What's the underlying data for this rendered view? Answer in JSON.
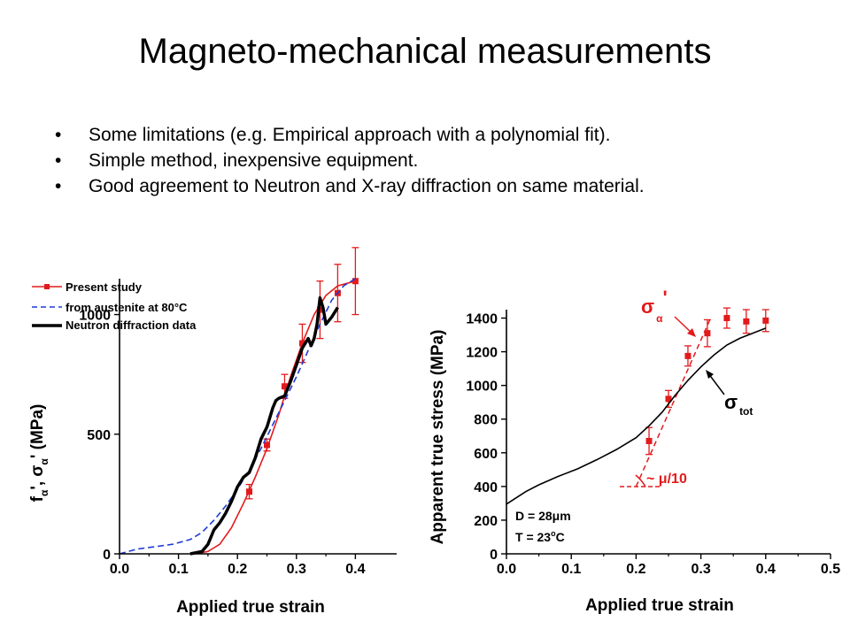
{
  "slide": {
    "title": "Magneto-mechanical measurements",
    "bullets": [
      "Some limitations (e.g. Empirical approach with a polynomial fit).",
      "Simple method, inexpensive equipment.",
      "Good agreement to Neutron and X-ray diffraction on same material."
    ]
  },
  "colors": {
    "red": "#e31a1c",
    "blue": "#1f3bd6",
    "black": "#000000"
  },
  "chart_data": [
    {
      "type": "line",
      "xlabel": "Applied true strain",
      "ylabel_parts": [
        "f",
        "α",
        "', σ",
        "α",
        "' (MPa)"
      ],
      "xlim": [
        0,
        0.47
      ],
      "ylim": [
        0,
        1150
      ],
      "xticks": [
        "0.0",
        "0.1",
        "0.2",
        "0.3",
        "0.4"
      ],
      "yticks": [
        "0",
        "500",
        "1000"
      ],
      "legend": {
        "placement": "top-left",
        "entries": [
          {
            "label": "Present study",
            "style": "red line with square markers"
          },
          {
            "label": "from austenite at 80°C",
            "style": "blue dashed"
          },
          {
            "label": "Neutron diffraction data",
            "style": "black thick"
          }
        ]
      },
      "series": [
        {
          "name": "Present study",
          "kind": "markers",
          "points": [
            {
              "x": 0.22,
              "y": 260,
              "err": 30
            },
            {
              "x": 0.25,
              "y": 455,
              "err": 25
            },
            {
              "x": 0.28,
              "y": 700,
              "err": 50
            },
            {
              "x": 0.31,
              "y": 880,
              "err": 80
            },
            {
              "x": 0.34,
              "y": 1020,
              "err": 120
            },
            {
              "x": 0.37,
              "y": 1090,
              "err": 120
            },
            {
              "x": 0.4,
              "y": 1140,
              "err": 140
            }
          ],
          "curve": [
            [
              0.13,
              0
            ],
            [
              0.15,
              10
            ],
            [
              0.17,
              40
            ],
            [
              0.19,
              110
            ],
            [
              0.21,
              210
            ],
            [
              0.23,
              320
            ],
            [
              0.25,
              440
            ],
            [
              0.27,
              580
            ],
            [
              0.29,
              740
            ],
            [
              0.31,
              880
            ],
            [
              0.33,
              1000
            ],
            [
              0.35,
              1080
            ],
            [
              0.37,
              1120
            ],
            [
              0.4,
              1140
            ]
          ]
        },
        {
          "name": "from austenite at 80°C",
          "kind": "dashed",
          "curve": [
            [
              0.0,
              0
            ],
            [
              0.03,
              20
            ],
            [
              0.06,
              30
            ],
            [
              0.09,
              40
            ],
            [
              0.12,
              60
            ],
            [
              0.14,
              90
            ],
            [
              0.16,
              140
            ],
            [
              0.18,
              200
            ],
            [
              0.2,
              270
            ],
            [
              0.22,
              350
            ],
            [
              0.24,
              440
            ],
            [
              0.26,
              540
            ],
            [
              0.28,
              640
            ],
            [
              0.3,
              740
            ],
            [
              0.32,
              850
            ],
            [
              0.34,
              960
            ],
            [
              0.36,
              1060
            ],
            [
              0.38,
              1120
            ],
            [
              0.4,
              1150
            ]
          ]
        },
        {
          "name": "Neutron diffraction data",
          "kind": "thick",
          "curve": [
            [
              0.12,
              0
            ],
            [
              0.14,
              10
            ],
            [
              0.15,
              40
            ],
            [
              0.16,
              100
            ],
            [
              0.17,
              130
            ],
            [
              0.18,
              170
            ],
            [
              0.19,
              220
            ],
            [
              0.2,
              280
            ],
            [
              0.21,
              320
            ],
            [
              0.22,
              340
            ],
            [
              0.23,
              400
            ],
            [
              0.24,
              480
            ],
            [
              0.25,
              530
            ],
            [
              0.26,
              610
            ],
            [
              0.265,
              640
            ],
            [
              0.27,
              650
            ],
            [
              0.28,
              660
            ],
            [
              0.29,
              720
            ],
            [
              0.3,
              790
            ],
            [
              0.31,
              860
            ],
            [
              0.32,
              900
            ],
            [
              0.325,
              870
            ],
            [
              0.33,
              900
            ],
            [
              0.335,
              960
            ],
            [
              0.34,
              1070
            ],
            [
              0.345,
              1030
            ],
            [
              0.35,
              960
            ],
            [
              0.36,
              990
            ],
            [
              0.37,
              1030
            ]
          ]
        }
      ]
    },
    {
      "type": "line",
      "xlabel": "Applied true strain",
      "ylabel": "Apparent true stress (MPa)",
      "xlim": [
        0,
        0.5
      ],
      "ylim": [
        0,
        1450
      ],
      "xticks": [
        "0.0",
        "0.1",
        "0.2",
        "0.3",
        "0.4",
        "0.5"
      ],
      "yticks": [
        "0",
        "200",
        "400",
        "600",
        "800",
        "1000",
        "1200",
        "1400"
      ],
      "annotations": {
        "sigma_alpha": [
          "σ",
          "α",
          "'"
        ],
        "sigma_tot": [
          "σ",
          "tot"
        ],
        "slope": [
          "~ ",
          "μ",
          "/10"
        ],
        "D": [
          "D = 28",
          "μ",
          "m"
        ],
        "T": [
          "T = 23",
          "o",
          "C"
        ]
      },
      "series": [
        {
          "name": "σα'",
          "kind": "markers",
          "points": [
            {
              "x": 0.22,
              "y": 670,
              "err": 80
            },
            {
              "x": 0.25,
              "y": 920,
              "err": 50
            },
            {
              "x": 0.28,
              "y": 1175,
              "err": 60
            },
            {
              "x": 0.31,
              "y": 1310,
              "err": 80
            },
            {
              "x": 0.34,
              "y": 1400,
              "err": 60
            },
            {
              "x": 0.37,
              "y": 1380,
              "err": 70
            },
            {
              "x": 0.4,
              "y": 1385,
              "err": 65
            }
          ],
          "fit": [
            [
              0.2,
              400
            ],
            [
              0.315,
              1400
            ]
          ]
        },
        {
          "name": "σtot",
          "kind": "solid",
          "curve": [
            [
              0.0,
              295
            ],
            [
              0.01,
              320
            ],
            [
              0.03,
              370
            ],
            [
              0.05,
              410
            ],
            [
              0.08,
              460
            ],
            [
              0.11,
              505
            ],
            [
              0.14,
              560
            ],
            [
              0.17,
              620
            ],
            [
              0.2,
              690
            ],
            [
              0.22,
              760
            ],
            [
              0.24,
              840
            ],
            [
              0.26,
              940
            ],
            [
              0.28,
              1030
            ],
            [
              0.3,
              1110
            ],
            [
              0.32,
              1180
            ],
            [
              0.34,
              1240
            ],
            [
              0.36,
              1280
            ],
            [
              0.38,
              1310
            ],
            [
              0.4,
              1340
            ]
          ]
        }
      ]
    }
  ]
}
